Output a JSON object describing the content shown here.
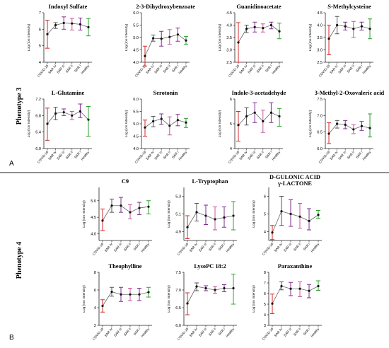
{
  "figure": {
    "sections": [
      {
        "label": "Phenotype 3",
        "letter": "A"
      },
      {
        "label": "Phenotype 4",
        "letter": "B"
      }
    ]
  },
  "chart_data": [
    {
      "type": "line",
      "title": "Indoxyl Sulfate",
      "ylabel": "Log (Ion Intensity)",
      "categories": [
        "COVID-19",
        "SAR IV",
        "SAR III",
        "SAR II",
        "SAR I",
        "Healthy"
      ],
      "ylim": [
        4,
        7
      ],
      "yticks": [
        4,
        5,
        6,
        7
      ],
      "series": [
        {
          "values": [
            5.7,
            6.25,
            6.38,
            6.35,
            6.3,
            6.12
          ],
          "lower": [
            4.85,
            6.05,
            6.0,
            5.95,
            5.95,
            5.6
          ],
          "upper": [
            6.55,
            6.4,
            6.75,
            6.65,
            6.68,
            6.65
          ],
          "colors": [
            "#d62728",
            "#555555",
            "#7b2d8e",
            "#c45a9b",
            "#7b2d8e",
            "#2ca02c"
          ]
        }
      ]
    },
    {
      "type": "line",
      "title": "2-3-Dihydroxybenzoate",
      "ylabel": "Log (Ion Intensity)",
      "categories": [
        "COVID-19",
        "SAR IV",
        "SAR III",
        "SAR II",
        "SAR I",
        "Healthy"
      ],
      "ylim": [
        4.0,
        6.0
      ],
      "yticks": [
        4.0,
        4.5,
        5.0,
        5.5,
        6.0
      ],
      "series": [
        {
          "values": [
            4.25,
            4.97,
            4.95,
            5.02,
            5.12,
            4.88
          ],
          "lower": [
            3.85,
            4.85,
            4.65,
            4.72,
            4.85,
            4.72
          ],
          "upper": [
            4.65,
            5.1,
            5.25,
            5.32,
            5.38,
            5.04
          ],
          "colors": [
            "#d62728",
            "#555555",
            "#7b2d8e",
            "#c45a9b",
            "#7b2d8e",
            "#2ca02c"
          ]
        }
      ]
    },
    {
      "type": "line",
      "title": "Guanidinoacetate",
      "ylabel": "Log (Ion Intensity)",
      "categories": [
        "COVID-19",
        "SAR IV",
        "SAR III",
        "SAR II",
        "SAR I",
        "Healthy"
      ],
      "ylim": [
        2.5,
        4.5
      ],
      "yticks": [
        2.5,
        3.0,
        3.5,
        4.0,
        4.5
      ],
      "series": [
        {
          "values": [
            3.3,
            3.85,
            3.92,
            3.88,
            4.0,
            3.75
          ],
          "lower": [
            2.5,
            3.7,
            3.72,
            3.72,
            3.85,
            3.45
          ],
          "upper": [
            4.1,
            4.0,
            4.12,
            4.05,
            4.12,
            4.08
          ],
          "colors": [
            "#d62728",
            "#555555",
            "#7b2d8e",
            "#c45a9b",
            "#7b2d8e",
            "#2ca02c"
          ]
        }
      ]
    },
    {
      "type": "line",
      "title": "S-Methylcysteine",
      "ylabel": "Log (Ion Intensity)",
      "categories": [
        "COVID-19",
        "SAR IV",
        "SAR III",
        "SAR II",
        "SAR I",
        "Healthy"
      ],
      "ylim": [
        2.5,
        4.5
      ],
      "yticks": [
        2.5,
        3.0,
        3.5,
        4.0,
        4.5
      ],
      "series": [
        {
          "values": [
            3.45,
            4.0,
            3.95,
            3.85,
            3.95,
            3.85
          ],
          "lower": [
            2.8,
            3.65,
            3.8,
            3.5,
            3.8,
            3.45
          ],
          "upper": [
            4.0,
            4.35,
            4.12,
            4.15,
            4.12,
            4.25
          ],
          "colors": [
            "#d62728",
            "#555555",
            "#7b2d8e",
            "#c45a9b",
            "#7b2d8e",
            "#2ca02c"
          ]
        }
      ]
    },
    {
      "type": "line",
      "title": "L-Glutamine",
      "ylabel": "Log (Ion Intensity)",
      "categories": [
        "COVID-19",
        "SAR IV",
        "SAR III",
        "SAR II",
        "SAR I",
        "Healthy"
      ],
      "ylim": [
        6.0,
        7.2
      ],
      "yticks": [
        6.0,
        6.4,
        6.8,
        7.2
      ],
      "series": [
        {
          "values": [
            6.6,
            6.85,
            6.88,
            6.8,
            6.9,
            6.7
          ],
          "lower": [
            6.2,
            6.7,
            6.8,
            6.7,
            6.75,
            6.3
          ],
          "upper": [
            6.98,
            7.0,
            6.96,
            6.9,
            7.08,
            7.02
          ],
          "colors": [
            "#d62728",
            "#555555",
            "#7b2d8e",
            "#c45a9b",
            "#7b2d8e",
            "#2ca02c"
          ]
        }
      ]
    },
    {
      "type": "line",
      "title": "Serotonin",
      "ylabel": "Log (Ion Intensity)",
      "categories": [
        "COVID-19",
        "SAR IV",
        "SAR III",
        "SAR II",
        "SAR I",
        "Healthy"
      ],
      "ylim": [
        4.0,
        6.0
      ],
      "yticks": [
        4.0,
        4.5,
        5.0,
        5.5,
        6.0
      ],
      "series": [
        {
          "values": [
            4.85,
            5.1,
            5.2,
            4.92,
            5.15,
            5.05
          ],
          "lower": [
            4.5,
            4.88,
            4.98,
            4.55,
            4.92,
            4.85
          ],
          "upper": [
            5.15,
            5.3,
            5.4,
            5.28,
            5.38,
            5.22
          ],
          "colors": [
            "#d62728",
            "#555555",
            "#7b2d8e",
            "#c45a9b",
            "#7b2d8e",
            "#2ca02c"
          ]
        }
      ]
    },
    {
      "type": "line",
      "title": "Indole-3-acetadehyde",
      "ylabel": "Log (Ion Intensity)",
      "categories": [
        "COVID-19",
        "SAR IV",
        "SAR III",
        "SAR II",
        "SAR I",
        "Healthy"
      ],
      "ylim": [
        4,
        6
      ],
      "yticks": [
        4,
        5,
        6
      ],
      "series": [
        {
          "values": [
            4.95,
            5.3,
            5.45,
            5.1,
            5.45,
            5.3
          ],
          "lower": [
            4.3,
            4.95,
            5.05,
            4.65,
            5.05,
            4.9
          ],
          "upper": [
            5.5,
            5.65,
            5.85,
            5.55,
            5.85,
            5.62
          ],
          "colors": [
            "#d62728",
            "#555555",
            "#7b2d8e",
            "#c45a9b",
            "#7b2d8e",
            "#2ca02c"
          ]
        }
      ]
    },
    {
      "type": "line",
      "title": "3-Methyl-2-Oxovaleric acid",
      "ylabel": "Log (Ion Intensity)",
      "categories": [
        "COVID-19",
        "SAR IV",
        "SAR III",
        "SAR II",
        "SAR I",
        "Healthy"
      ],
      "ylim": [
        6.0,
        7.5
      ],
      "yticks": [
        6.0,
        6.5,
        7.0,
        7.5
      ],
      "series": [
        {
          "values": [
            6.45,
            6.75,
            6.72,
            6.58,
            6.68,
            6.62
          ],
          "lower": [
            6.15,
            6.62,
            6.6,
            6.45,
            6.55,
            6.35
          ],
          "upper": [
            6.78,
            6.85,
            6.85,
            6.72,
            6.82,
            7.05
          ],
          "colors": [
            "#d62728",
            "#555555",
            "#7b2d8e",
            "#c45a9b",
            "#7b2d8e",
            "#2ca02c"
          ]
        }
      ]
    },
    {
      "type": "line",
      "title": "C9",
      "ylabel": "Log (Ion Intensity)",
      "categories": [
        "COVID-19",
        "SAR IV",
        "SAR III",
        "SAR II",
        "SAR I",
        "Healthy"
      ],
      "ylim": [
        3.8,
        5.4
      ],
      "yticks": [
        4.0,
        4.5,
        5.0
      ],
      "series": [
        {
          "values": [
            4.4,
            4.85,
            4.85,
            4.65,
            4.78,
            4.82
          ],
          "lower": [
            4.1,
            4.65,
            4.65,
            4.45,
            4.58,
            4.6
          ],
          "upper": [
            4.75,
            5.05,
            5.1,
            4.88,
            4.95,
            5.0
          ],
          "colors": [
            "#d62728",
            "#555555",
            "#7b2d8e",
            "#c45a9b",
            "#7b2d8e",
            "#2ca02c"
          ]
        }
      ]
    },
    {
      "type": "line",
      "title": "L-Tryptophan",
      "ylabel": "Log (Ion Intensity)",
      "categories": [
        "COVID-19",
        "SAR IV",
        "SAR III",
        "SAR II",
        "SAR I",
        "Healthy"
      ],
      "ylim": [
        4.8,
        5.4
      ],
      "yticks": [
        4.9,
        5.1,
        5.3
      ],
      "series": [
        {
          "values": [
            4.95,
            5.12,
            5.08,
            5.04,
            5.06,
            5.08
          ],
          "lower": [
            4.82,
            5.02,
            4.98,
            4.92,
            4.95,
            4.92
          ],
          "upper": [
            5.08,
            5.22,
            5.2,
            5.18,
            5.18,
            5.24
          ],
          "colors": [
            "#d62728",
            "#555555",
            "#7b2d8e",
            "#c45a9b",
            "#7b2d8e",
            "#2ca02c"
          ]
        }
      ]
    },
    {
      "type": "line",
      "title": "D-GULONIC ACID γ-LACTONE",
      "ylabel": "Log (Ion Intensity)",
      "categories": [
        "COVID-19",
        "SAR IV",
        "SAR III",
        "SAR II",
        "SAR I",
        "Healthy"
      ],
      "ylim": [
        3.5,
        6.5
      ],
      "yticks": [
        4,
        5,
        6
      ],
      "series": [
        {
          "values": [
            3.95,
            5.15,
            5.0,
            4.85,
            4.6,
            4.95
          ],
          "lower": [
            3.55,
            4.35,
            4.3,
            4.2,
            4.1,
            4.75
          ],
          "upper": [
            4.35,
            6.0,
            5.8,
            5.6,
            5.3,
            5.2
          ],
          "colors": [
            "#d62728",
            "#555555",
            "#7b2d8e",
            "#c45a9b",
            "#7b2d8e",
            "#2ca02c"
          ]
        }
      ]
    },
    {
      "type": "line",
      "title": "Theophylline",
      "ylabel": "Log (Ion Intensity)",
      "categories": [
        "COVID-19",
        "SAR IV",
        "SAR III",
        "SAR II",
        "SAR I",
        "Healthy"
      ],
      "ylim": [
        2,
        8
      ],
      "yticks": [
        2,
        4,
        6,
        8
      ],
      "series": [
        {
          "values": [
            4.2,
            5.8,
            5.5,
            5.5,
            5.5,
            5.75
          ],
          "lower": [
            3.5,
            5.3,
            4.7,
            4.8,
            4.8,
            5.2
          ],
          "upper": [
            4.9,
            6.3,
            6.3,
            6.2,
            6.2,
            6.3
          ],
          "colors": [
            "#d62728",
            "#555555",
            "#7b2d8e",
            "#c45a9b",
            "#7b2d8e",
            "#2ca02c"
          ]
        }
      ]
    },
    {
      "type": "line",
      "title": "LysoPC 18:2",
      "ylabel": "Log (Ion Intensity)",
      "categories": [
        "COVID-19",
        "SAR IV",
        "SAR III",
        "SAR II",
        "SAR I",
        "Healthy"
      ],
      "ylim": [
        6.0,
        7.5
      ],
      "yticks": [
        6.0,
        6.5,
        7.0,
        7.5
      ],
      "series": [
        {
          "values": [
            6.62,
            7.1,
            7.05,
            7.0,
            7.05,
            7.05
          ],
          "lower": [
            6.3,
            6.98,
            6.98,
            6.9,
            6.95,
            6.6
          ],
          "upper": [
            6.92,
            7.2,
            7.12,
            7.1,
            7.15,
            7.45
          ],
          "colors": [
            "#d62728",
            "#555555",
            "#7b2d8e",
            "#c45a9b",
            "#7b2d8e",
            "#2ca02c"
          ]
        }
      ]
    },
    {
      "type": "line",
      "title": "Paraxanthine",
      "ylabel": "Log (Ion Intensity)",
      "categories": [
        "COVID-19",
        "SAR IV",
        "SAR III",
        "SAR II",
        "SAR I",
        "Healthy"
      ],
      "ylim": [
        3,
        8
      ],
      "yticks": [
        3,
        4,
        5,
        6,
        7,
        8
      ],
      "series": [
        {
          "values": [
            5.05,
            6.7,
            6.45,
            6.45,
            6.25,
            6.7
          ],
          "lower": [
            4.1,
            6.35,
            5.8,
            5.7,
            5.6,
            6.3
          ],
          "upper": [
            5.95,
            7.1,
            7.05,
            7.1,
            6.85,
            7.2
          ],
          "colors": [
            "#d62728",
            "#555555",
            "#7b2d8e",
            "#c45a9b",
            "#7b2d8e",
            "#2ca02c"
          ]
        }
      ]
    }
  ]
}
